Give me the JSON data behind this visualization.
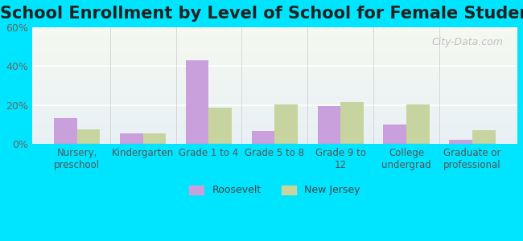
{
  "title": "School Enrollment by Level of School for Female Students",
  "categories": [
    "Nursery,\npreschool",
    "Kindergarten",
    "Grade 1 to 4",
    "Grade 5 to 8",
    "Grade 9 to\n12",
    "College\nundergrad",
    "Graduate or\nprofessional"
  ],
  "roosevelt": [
    13.5,
    5.5,
    43.0,
    6.5,
    19.5,
    10.0,
    2.0
  ],
  "new_jersey": [
    7.5,
    5.5,
    18.5,
    20.5,
    21.5,
    20.5,
    7.0
  ],
  "roosevelt_color": "#c9a0dc",
  "new_jersey_color": "#c8d4a0",
  "background_outer": "#00e5ff",
  "background_inner_top": "#f0f5e8",
  "background_inner_bottom": "#e8f0f5",
  "ylim": [
    0,
    60
  ],
  "yticks": [
    0,
    20,
    40,
    60
  ],
  "ytick_labels": [
    "0%",
    "20%",
    "40%",
    "60%"
  ],
  "title_fontsize": 15,
  "legend_labels": [
    "Roosevelt",
    "New Jersey"
  ],
  "watermark": "City-Data.com"
}
